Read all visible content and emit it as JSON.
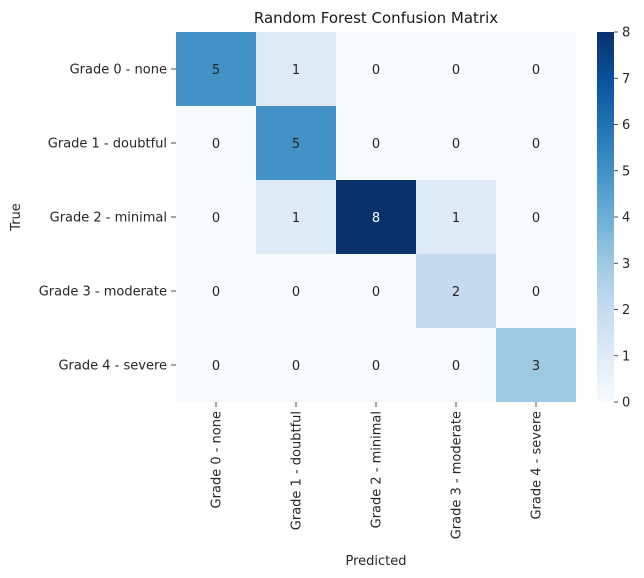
{
  "chart_data": {
    "type": "heatmap",
    "title": "Random Forest Confusion Matrix",
    "xlabel": "Predicted",
    "ylabel": "True",
    "x_categories": [
      "Grade 0 - none",
      "Grade 1 - doubtful",
      "Grade 2 - minimal",
      "Grade 3 - moderate",
      "Grade 4 - severe"
    ],
    "y_categories": [
      "Grade 0 - none",
      "Grade 1 - doubtful",
      "Grade 2 - minimal",
      "Grade 3 - moderate",
      "Grade 4 - severe"
    ],
    "values": [
      [
        5,
        1,
        0,
        0,
        0
      ],
      [
        0,
        5,
        0,
        0,
        0
      ],
      [
        0,
        1,
        8,
        1,
        0
      ],
      [
        0,
        0,
        0,
        2,
        0
      ],
      [
        0,
        0,
        0,
        0,
        3
      ]
    ],
    "colorbar": {
      "min": 0,
      "max": 8,
      "ticks": [
        "0",
        "1",
        "2",
        "3",
        "4",
        "5",
        "6",
        "7",
        "8"
      ]
    },
    "colormap": "Blues",
    "color_low": "#f7fbff",
    "color_high": "#08306b",
    "grid": false,
    "annotated": true
  }
}
